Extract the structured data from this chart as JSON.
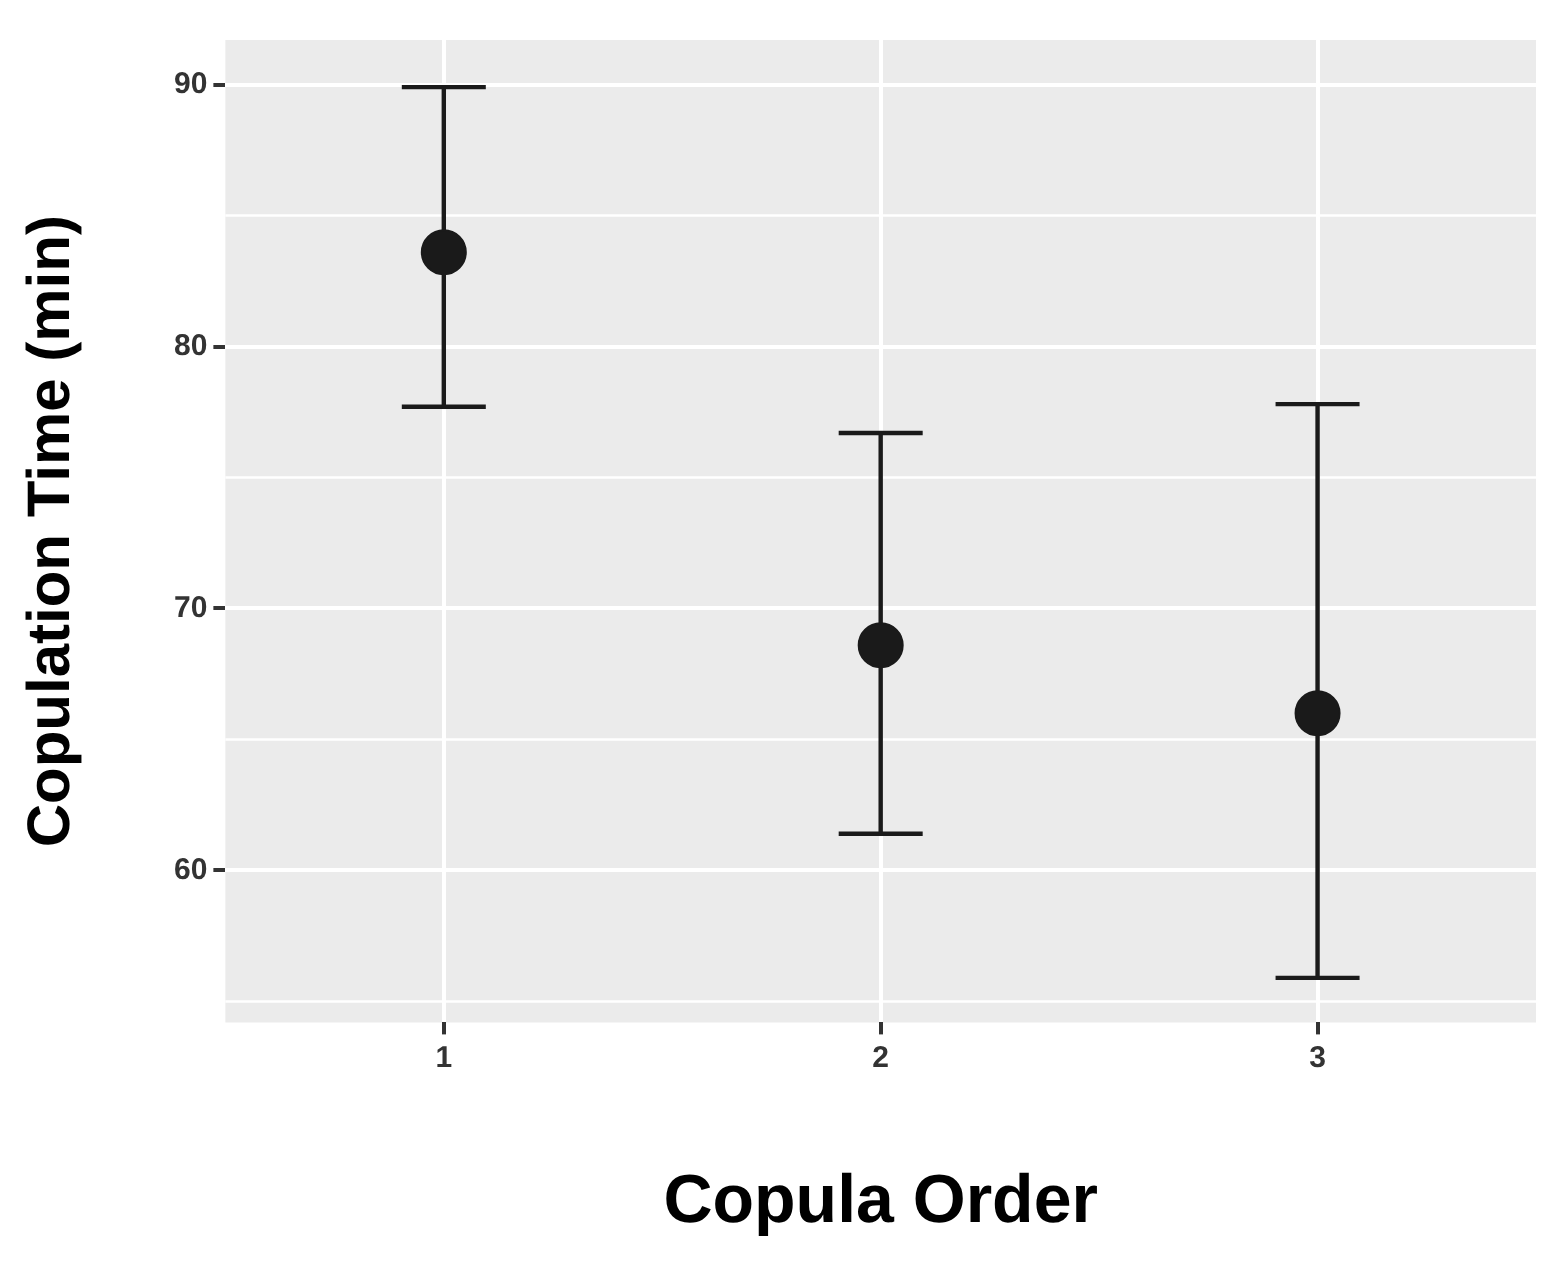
{
  "chart_data": {
    "type": "scatter",
    "xlabel": "Copula Order",
    "ylabel": "Copulation Time (min)",
    "categories": [
      "1",
      "2",
      "3"
    ],
    "values": [
      83.6,
      68.6,
      66.0
    ],
    "color": "#1a1a1a",
    "errors": [
      [
        77.7,
        89.9
      ],
      [
        61.4,
        76.7
      ],
      [
        55.9,
        77.8
      ]
    ],
    "ylim": [
      54.2,
      91.7
    ],
    "yticks": [
      60,
      70,
      80,
      90
    ],
    "grid": true,
    "legend": false,
    "marker": "circle"
  }
}
